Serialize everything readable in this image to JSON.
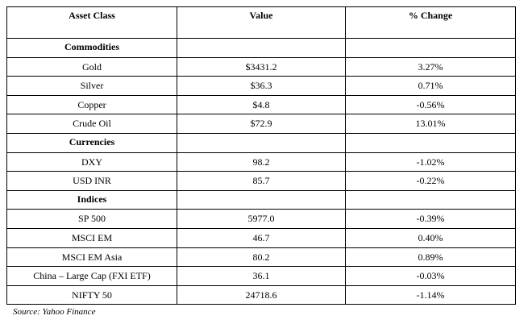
{
  "headers": [
    "Asset Class",
    "Value",
    "% Change"
  ],
  "sections": [
    {
      "title": "Commodities",
      "rows": [
        [
          "Gold",
          "$3431.2",
          "3.27%"
        ],
        [
          "Silver",
          "$36.3",
          "0.71%"
        ],
        [
          "Copper",
          "$4.8",
          "-0.56%"
        ],
        [
          "Crude Oil",
          "$72.9",
          "13.01%"
        ]
      ]
    },
    {
      "title": "Currencies",
      "rows": [
        [
          "DXY",
          "98.2",
          "-1.02%"
        ],
        [
          "USD INR",
          "85.7",
          "-0.22%"
        ]
      ]
    },
    {
      "title": "Indices",
      "rows": [
        [
          "SP 500",
          "5977.0",
          "-0.39%"
        ],
        [
          "MSCI EM",
          "46.7",
          "0.40%"
        ],
        [
          "MSCI EM Asia",
          "80.2",
          "0.89%"
        ],
        [
          "China – Large Cap (FXI ETF)",
          "36.1",
          "-0.03%"
        ],
        [
          "NIFTY 50",
          "24718.6",
          "-1.14%"
        ]
      ]
    }
  ],
  "source": "Source: Yahoo Finance"
}
